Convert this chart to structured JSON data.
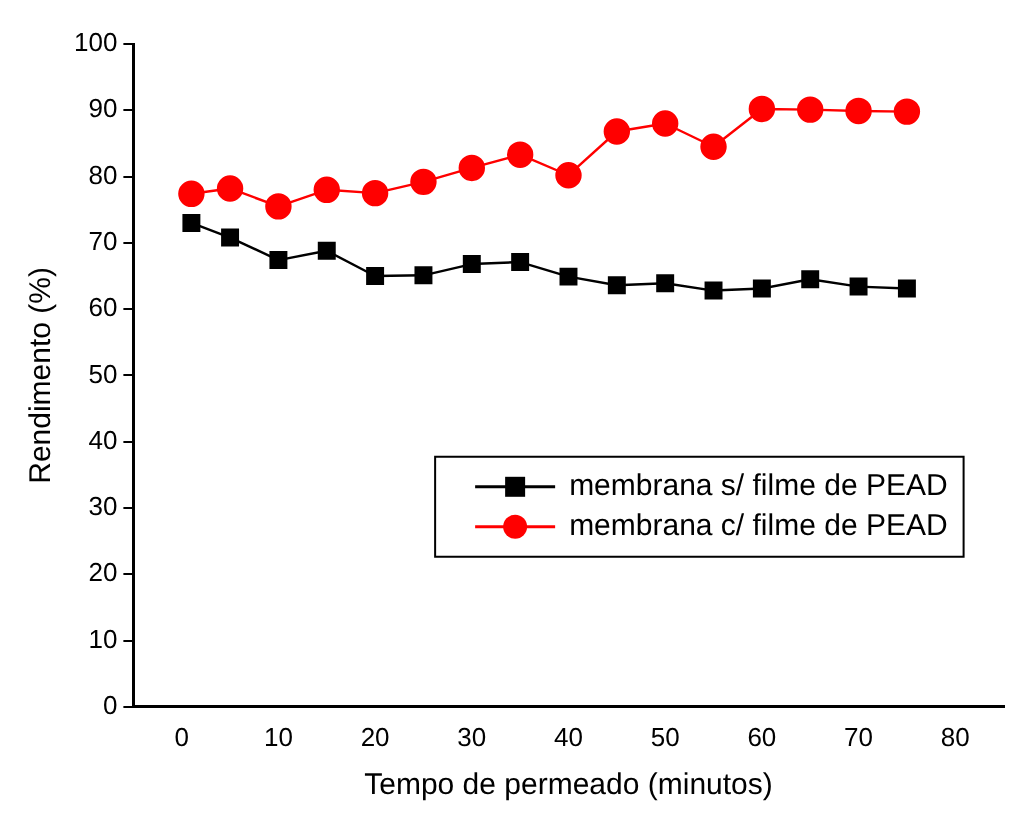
{
  "chart_data": {
    "type": "line",
    "xlabel": "Tempo de permeado (minutos)",
    "ylabel": "Rendimento (%)",
    "x": [
      1,
      5,
      10,
      15,
      20,
      25,
      30,
      35,
      40,
      45,
      50,
      55,
      60,
      65,
      70,
      75
    ],
    "series": [
      {
        "name": "membrana s/ filme de PEAD",
        "color": "#000000",
        "marker": "square",
        "values": [
          73,
          70.8,
          67.4,
          68.8,
          65,
          65.1,
          66.8,
          67.1,
          64.9,
          63.6,
          63.9,
          62.8,
          63.1,
          64.5,
          63.4,
          63.1
        ]
      },
      {
        "name": "membrana c/ filme de PEAD",
        "color": "#ff0000",
        "marker": "circle",
        "values": [
          77.4,
          78.2,
          75.5,
          78,
          77.5,
          79.2,
          81.3,
          83.3,
          80.2,
          86.8,
          88,
          84.5,
          90.2,
          90.1,
          89.9,
          89.8
        ]
      }
    ],
    "xlim": [
      -5,
      85
    ],
    "xticks": [
      0,
      10,
      20,
      30,
      40,
      50,
      60,
      70,
      80
    ],
    "ylim": [
      0,
      100
    ],
    "yticks": [
      0,
      10,
      20,
      30,
      40,
      50,
      60,
      70,
      80,
      90,
      100
    ],
    "grid": false,
    "legend": "bottom right",
    "line_style": "solid"
  }
}
